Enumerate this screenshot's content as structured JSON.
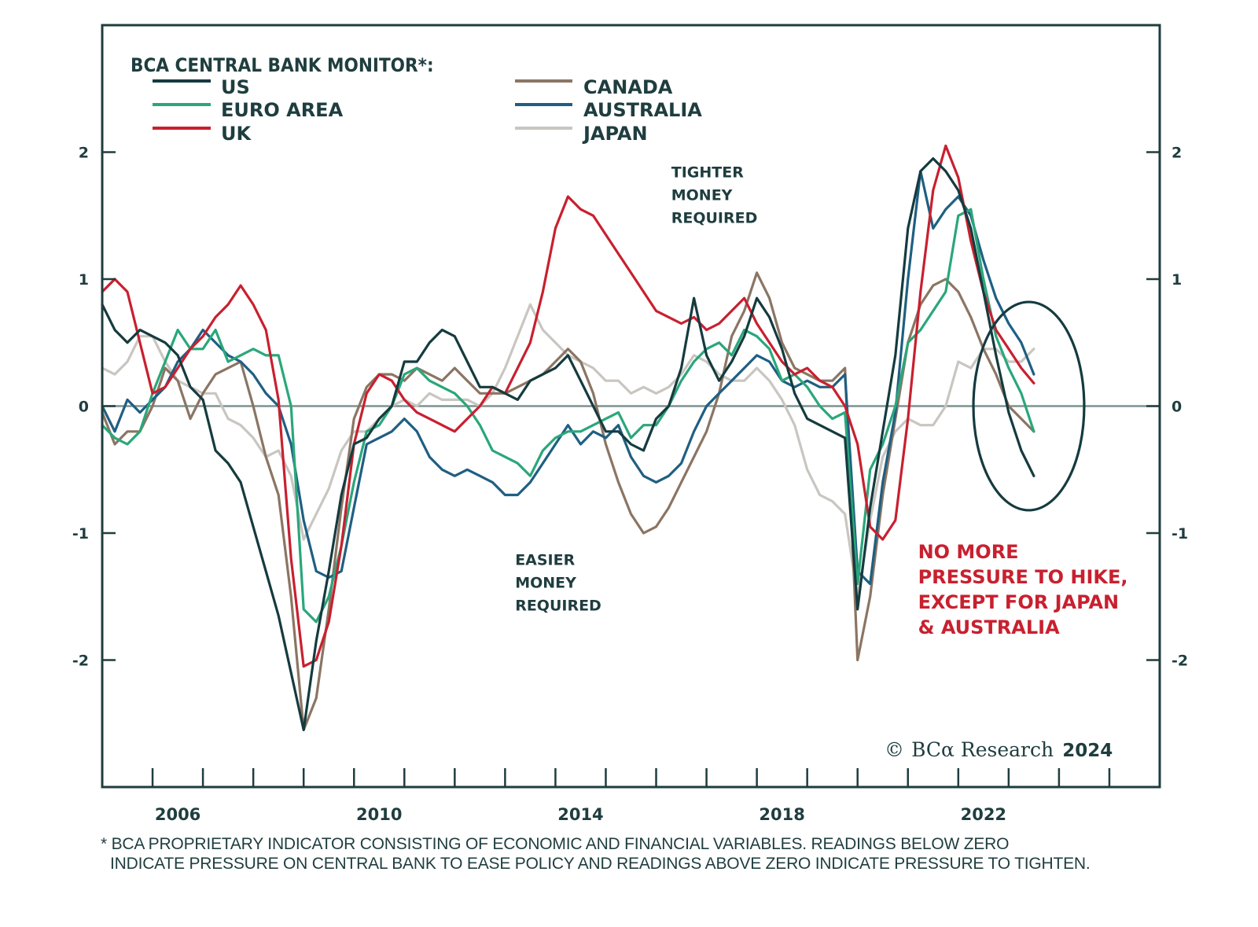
{
  "chart_data": {
    "type": "line",
    "title": "BCA CENTRAL BANK MONITOR*:",
    "xlabel": "",
    "ylabel": "",
    "xlim": [
      2005,
      2026
    ],
    "ylim": [
      -3,
      3
    ],
    "grid": false,
    "zero_line": true,
    "legend_position": "top-left",
    "x_tick_labels": [
      "2006",
      "2010",
      "2014",
      "2018",
      "2022"
    ],
    "x_tick_label_years": [
      2006.5,
      2010.5,
      2014.5,
      2018.5,
      2022.5
    ],
    "x_minor_ticks": [
      2006,
      2007,
      2008,
      2009,
      2010,
      2011,
      2012,
      2013,
      2014,
      2015,
      2016,
      2017,
      2018,
      2019,
      2020,
      2021,
      2022,
      2023,
      2024,
      2025
    ],
    "y_ticks": [
      2,
      1,
      0,
      -1,
      -2
    ],
    "y_tick_labels": [
      "2",
      "1",
      "0",
      "-1",
      "-2"
    ],
    "x": [
      2005.0,
      2005.25,
      2005.5,
      2005.75,
      2006.0,
      2006.25,
      2006.5,
      2006.75,
      2007.0,
      2007.25,
      2007.5,
      2007.75,
      2008.0,
      2008.25,
      2008.5,
      2008.75,
      2009.0,
      2009.25,
      2009.5,
      2009.75,
      2010.0,
      2010.25,
      2010.5,
      2010.75,
      2011.0,
      2011.25,
      2011.5,
      2011.75,
      2012.0,
      2012.25,
      2012.5,
      2012.75,
      2013.0,
      2013.25,
      2013.5,
      2013.75,
      2014.0,
      2014.25,
      2014.5,
      2014.75,
      2015.0,
      2015.25,
      2015.5,
      2015.75,
      2016.0,
      2016.25,
      2016.5,
      2016.75,
      2017.0,
      2017.25,
      2017.5,
      2017.75,
      2018.0,
      2018.25,
      2018.5,
      2018.75,
      2019.0,
      2019.25,
      2019.5,
      2019.75,
      2020.0,
      2020.25,
      2020.5,
      2020.75,
      2021.0,
      2021.25,
      2021.5,
      2021.75,
      2022.0,
      2022.25,
      2022.5,
      2022.75,
      2023.0,
      2023.25,
      2023.5
    ],
    "series": [
      {
        "name": "US",
        "color": "#153b3f",
        "values": [
          0.8,
          0.6,
          0.5,
          0.6,
          0.55,
          0.5,
          0.4,
          0.15,
          0.05,
          -0.35,
          -0.45,
          -0.6,
          -0.95,
          -1.3,
          -1.65,
          -2.1,
          -2.55,
          -1.85,
          -1.3,
          -0.7,
          -0.3,
          -0.25,
          -0.1,
          0.0,
          0.35,
          0.35,
          0.5,
          0.6,
          0.55,
          0.35,
          0.15,
          0.15,
          0.1,
          0.05,
          0.2,
          0.25,
          0.3,
          0.4,
          0.2,
          0.0,
          -0.2,
          -0.2,
          -0.3,
          -0.35,
          -0.1,
          0.0,
          0.3,
          0.85,
          0.4,
          0.2,
          0.35,
          0.55,
          0.85,
          0.7,
          0.45,
          0.1,
          -0.1,
          -0.15,
          -0.2,
          -0.25,
          -1.6,
          -0.8,
          -0.2,
          0.4,
          1.4,
          1.85,
          1.95,
          1.85,
          1.7,
          1.4,
          0.9,
          0.4,
          -0.05,
          -0.35,
          -0.55
        ]
      },
      {
        "name": "EURO AREA",
        "color": "#2aa77a",
        "values": [
          -0.15,
          -0.25,
          -0.3,
          -0.2,
          0.1,
          0.35,
          0.6,
          0.45,
          0.45,
          0.6,
          0.35,
          0.4,
          0.45,
          0.4,
          0.4,
          0.0,
          -1.6,
          -1.7,
          -1.5,
          -1.1,
          -0.6,
          -0.2,
          -0.15,
          0.0,
          0.25,
          0.3,
          0.2,
          0.15,
          0.1,
          0.0,
          -0.15,
          -0.35,
          -0.4,
          -0.45,
          -0.55,
          -0.35,
          -0.25,
          -0.2,
          -0.2,
          -0.15,
          -0.1,
          -0.05,
          -0.25,
          -0.15,
          -0.15,
          0.0,
          0.2,
          0.35,
          0.45,
          0.5,
          0.4,
          0.6,
          0.55,
          0.45,
          0.2,
          0.25,
          0.15,
          0.0,
          -0.1,
          -0.05,
          -1.4,
          -0.5,
          -0.3,
          0.0,
          0.5,
          0.6,
          0.75,
          0.9,
          1.5,
          1.55,
          1.0,
          0.55,
          0.3,
          0.1,
          -0.2
        ]
      },
      {
        "name": "UK",
        "color": "#c8202f",
        "values": [
          0.9,
          1.0,
          0.9,
          0.5,
          0.1,
          0.15,
          0.3,
          0.45,
          0.55,
          0.7,
          0.8,
          0.95,
          0.8,
          0.6,
          0.05,
          -1.2,
          -2.05,
          -2.0,
          -1.7,
          -1.1,
          -0.3,
          0.1,
          0.25,
          0.2,
          0.05,
          -0.05,
          -0.1,
          -0.15,
          -0.2,
          -0.1,
          0.0,
          0.15,
          0.1,
          0.3,
          0.5,
          0.9,
          1.4,
          1.65,
          1.55,
          1.5,
          1.35,
          1.2,
          1.05,
          0.9,
          0.75,
          0.7,
          0.65,
          0.7,
          0.6,
          0.65,
          0.75,
          0.85,
          0.65,
          0.5,
          0.35,
          0.25,
          0.3,
          0.2,
          0.15,
          0.0,
          -0.3,
          -0.95,
          -1.05,
          -0.9,
          -0.1,
          0.9,
          1.7,
          2.05,
          1.8,
          1.3,
          0.9,
          0.6,
          0.45,
          0.3,
          0.18
        ]
      },
      {
        "name": "CANADA",
        "color": "#8b7563",
        "values": [
          -0.05,
          -0.3,
          -0.2,
          -0.2,
          0.0,
          0.3,
          0.2,
          -0.1,
          0.1,
          0.25,
          0.3,
          0.35,
          0.0,
          -0.4,
          -0.7,
          -1.5,
          -2.55,
          -2.3,
          -1.6,
          -0.8,
          -0.1,
          0.15,
          0.25,
          0.25,
          0.2,
          0.3,
          0.25,
          0.2,
          0.3,
          0.2,
          0.1,
          0.1,
          0.1,
          0.15,
          0.2,
          0.25,
          0.35,
          0.45,
          0.35,
          0.1,
          -0.3,
          -0.6,
          -0.85,
          -1.0,
          -0.95,
          -0.8,
          -0.6,
          -0.4,
          -0.2,
          0.1,
          0.55,
          0.75,
          1.05,
          0.85,
          0.5,
          0.3,
          0.25,
          0.2,
          0.2,
          0.3,
          -2.0,
          -1.5,
          -0.7,
          -0.1,
          0.5,
          0.8,
          0.95,
          1.0,
          0.9,
          0.7,
          0.45,
          0.25,
          0.0,
          -0.1,
          -0.2
        ]
      },
      {
        "name": "AUSTRALIA",
        "color": "#1f5f82",
        "values": [
          0.0,
          -0.2,
          0.05,
          -0.05,
          0.05,
          0.15,
          0.35,
          0.45,
          0.6,
          0.5,
          0.4,
          0.35,
          0.25,
          0.1,
          0.0,
          -0.3,
          -0.9,
          -1.3,
          -1.35,
          -1.3,
          -0.8,
          -0.3,
          -0.25,
          -0.2,
          -0.1,
          -0.2,
          -0.4,
          -0.5,
          -0.55,
          -0.5,
          -0.55,
          -0.6,
          -0.7,
          -0.7,
          -0.6,
          -0.45,
          -0.3,
          -0.15,
          -0.3,
          -0.2,
          -0.25,
          -0.15,
          -0.4,
          -0.55,
          -0.6,
          -0.55,
          -0.45,
          -0.2,
          0.0,
          0.1,
          0.2,
          0.3,
          0.4,
          0.35,
          0.2,
          0.15,
          0.2,
          0.15,
          0.15,
          0.25,
          -1.3,
          -1.4,
          -0.6,
          -0.05,
          1.0,
          1.85,
          1.4,
          1.55,
          1.65,
          1.5,
          1.15,
          0.85,
          0.65,
          0.5,
          0.25
        ]
      },
      {
        "name": "JAPAN",
        "color": "#c9c6c1",
        "values": [
          0.3,
          0.25,
          0.35,
          0.55,
          0.55,
          0.35,
          0.2,
          0.15,
          0.1,
          0.1,
          -0.1,
          -0.15,
          -0.25,
          -0.4,
          -0.35,
          -0.55,
          -1.05,
          -0.85,
          -0.65,
          -0.35,
          -0.2,
          -0.2,
          -0.1,
          0.0,
          0.05,
          0.0,
          0.1,
          0.05,
          0.05,
          0.05,
          0.0,
          0.1,
          0.3,
          0.55,
          0.8,
          0.6,
          0.5,
          0.4,
          0.35,
          0.3,
          0.2,
          0.2,
          0.1,
          0.15,
          0.1,
          0.15,
          0.25,
          0.4,
          0.35,
          0.25,
          0.2,
          0.2,
          0.3,
          0.2,
          0.05,
          -0.15,
          -0.5,
          -0.7,
          -0.75,
          -0.85,
          -1.5,
          -0.9,
          -0.4,
          -0.2,
          -0.1,
          -0.15,
          -0.15,
          0.0,
          0.35,
          0.3,
          0.45,
          0.45,
          0.35,
          0.35,
          0.45
        ]
      }
    ],
    "annotations": [
      {
        "id": "tighter",
        "lines": [
          "TIGHTER",
          "MONEY",
          "REQUIRED"
        ],
        "x": 2016.3,
        "y": 1.85,
        "color": "#1f3d3f"
      },
      {
        "id": "easier",
        "lines": [
          "EASIER",
          "MONEY",
          "REQUIRED"
        ],
        "x": 2013.2,
        "y": -1.2,
        "color": "#1f3d3f"
      },
      {
        "id": "no-more-pressure",
        "lines": [
          "NO MORE",
          "PRESSURE TO HIKE,",
          "EXCEPT FOR JAPAN",
          "& AUSTRALIA"
        ],
        "x": 2021.2,
        "y": -1.15,
        "color": "#c8202f"
      }
    ],
    "highlight_ellipse": {
      "center_x": 2023.4,
      "center_y": 0.0,
      "radius_x_years": 1.1,
      "radius_y_units": 0.82,
      "color": "#153b3f"
    }
  },
  "legend": {
    "title": "BCA CENTRAL BANK MONITOR*:",
    "items": [
      "US",
      "EURO AREA",
      "UK",
      "CANADA",
      "AUSTRALIA",
      "JAPAN"
    ]
  },
  "copyright": {
    "symbol": "©",
    "brand": "BCα Research",
    "year": "2024"
  },
  "footnote": {
    "line1": "*  BCA PROPRIETARY INDICATOR CONSISTING OF ECONOMIC AND FINANCIAL VARIABLES. READINGS BELOW ZERO",
    "line2": "INDICATE PRESSURE ON CENTRAL BANK TO EASE POLICY AND READINGS ABOVE ZERO INDICATE PRESSURE TO TIGHTEN."
  }
}
